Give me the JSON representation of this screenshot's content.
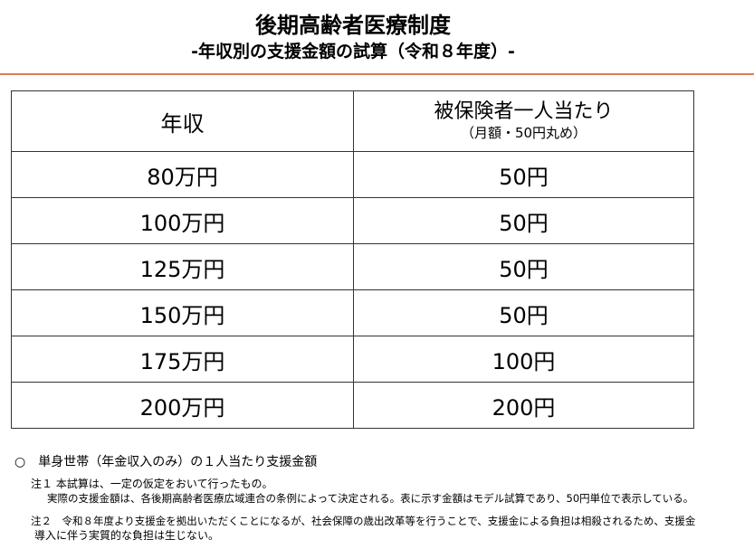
{
  "title": "後期高齢者医療制度",
  "subtitle": "-年収別の支援金額の試算（令和８年度）-",
  "accent_color": "#e07a50",
  "table": {
    "headers": {
      "col1": "年収",
      "col2_main": "被保険者一人当たり",
      "col2_sub": "（月額・50円丸め）"
    },
    "rows": [
      {
        "income": "80万円",
        "amount": "50円"
      },
      {
        "income": "100万円",
        "amount": "50円"
      },
      {
        "income": "125万円",
        "amount": "50円"
      },
      {
        "income": "150万円",
        "amount": "50円"
      },
      {
        "income": "175万円",
        "amount": "100円"
      },
      {
        "income": "200万円",
        "amount": "200円"
      }
    ]
  },
  "bullet": "○　単身世帯（年金収入のみ）の１人当たり支援金額",
  "notes": {
    "note1_line1": "注１ 本試算は、一定の仮定をおいて行ったもの。",
    "note1_line2": "実際の支援金額は、各後期高齢者医療広域連合の条例によって決定される。表に示す金額はモデル試算であり、50円単位で表示している。",
    "note2_line1": "注２　令和８年度より支援金を拠出いただくことになるが、社会保障の歳出改革等を行うことで、支援金による負担は相殺されるため、支援金",
    "note2_line2": "導入に伴う実質的な負担は生じない。"
  }
}
